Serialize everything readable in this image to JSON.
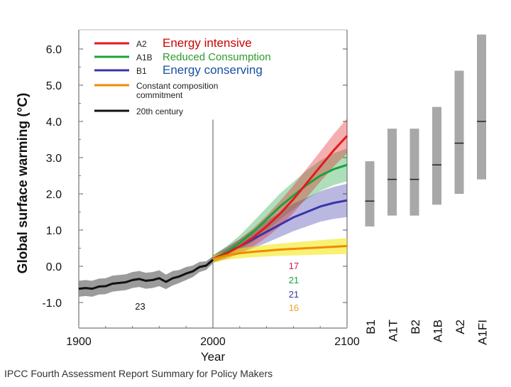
{
  "footer_text": "IPCC Fourth Assessment Report Summary for Policy Makers",
  "colors": {
    "A2": "#e31a1c",
    "A1B": "#1aa33a",
    "B1": "#3a34a8",
    "commit": "#f08a00",
    "history": "#111111",
    "history_band": "#8a8a8a",
    "bar": "#a8a8a8"
  },
  "chart_data": {
    "type": "line",
    "xlabel": "Year",
    "ylabel": "Global surface warming (°C)",
    "xlim": [
      1900,
      2100
    ],
    "ylim": [
      -1.0,
      6.0
    ],
    "x_ticks": [
      "1900",
      "2000",
      "2100"
    ],
    "y_ticks": [
      "-1.0",
      "0.0",
      "1.0",
      "2.0",
      "3.0",
      "4.0",
      "5.0",
      "6.0"
    ],
    "divider_year": 2000,
    "series": [
      {
        "key": "history",
        "name": "20th century",
        "x": [
          1900,
          1905,
          1910,
          1915,
          1920,
          1925,
          1930,
          1935,
          1940,
          1945,
          1950,
          1955,
          1960,
          1965,
          1970,
          1975,
          1980,
          1985,
          1990,
          1995,
          2000
        ],
        "y": [
          -0.62,
          -0.6,
          -0.62,
          -0.56,
          -0.55,
          -0.48,
          -0.46,
          -0.44,
          -0.38,
          -0.35,
          -0.4,
          -0.38,
          -0.33,
          -0.43,
          -0.33,
          -0.28,
          -0.2,
          -0.14,
          -0.02,
          0.02,
          0.18
        ],
        "band": [
          0.22,
          0.22,
          0.22,
          0.22,
          0.22,
          0.22,
          0.22,
          0.22,
          0.22,
          0.22,
          0.22,
          0.22,
          0.22,
          0.2,
          0.2,
          0.18,
          0.18,
          0.16,
          0.14,
          0.12,
          0.1
        ]
      },
      {
        "key": "A2",
        "name": "A2",
        "x": [
          2000,
          2010,
          2020,
          2030,
          2040,
          2050,
          2060,
          2070,
          2080,
          2090,
          2100
        ],
        "y": [
          0.2,
          0.35,
          0.55,
          0.8,
          1.1,
          1.45,
          1.85,
          2.3,
          2.75,
          3.2,
          3.6
        ],
        "band": [
          0.1,
          0.15,
          0.2,
          0.25,
          0.3,
          0.35,
          0.38,
          0.4,
          0.42,
          0.45,
          0.48
        ]
      },
      {
        "key": "A1B",
        "name": "A1B",
        "x": [
          2000,
          2010,
          2020,
          2030,
          2040,
          2050,
          2060,
          2070,
          2080,
          2090,
          2100
        ],
        "y": [
          0.2,
          0.4,
          0.65,
          0.95,
          1.3,
          1.65,
          1.95,
          2.25,
          2.5,
          2.68,
          2.8
        ],
        "band": [
          0.1,
          0.15,
          0.2,
          0.28,
          0.32,
          0.36,
          0.38,
          0.4,
          0.42,
          0.44,
          0.45
        ]
      },
      {
        "key": "B1",
        "name": "B1",
        "x": [
          2000,
          2010,
          2020,
          2030,
          2040,
          2050,
          2060,
          2070,
          2080,
          2090,
          2100
        ],
        "y": [
          0.2,
          0.38,
          0.55,
          0.75,
          0.95,
          1.15,
          1.35,
          1.5,
          1.65,
          1.75,
          1.82
        ],
        "band": [
          0.1,
          0.15,
          0.2,
          0.25,
          0.3,
          0.34,
          0.38,
          0.4,
          0.42,
          0.44,
          0.46
        ]
      },
      {
        "key": "commit",
        "name": "Constant composition commitment",
        "x": [
          2000,
          2010,
          2020,
          2030,
          2040,
          2050,
          2060,
          2070,
          2080,
          2090,
          2100
        ],
        "y": [
          0.2,
          0.3,
          0.36,
          0.4,
          0.43,
          0.46,
          0.48,
          0.5,
          0.52,
          0.54,
          0.56
        ],
        "band": [
          0.1,
          0.12,
          0.14,
          0.15,
          0.16,
          0.17,
          0.18,
          0.19,
          0.2,
          0.21,
          0.22
        ]
      }
    ],
    "legend": [
      {
        "key": "A2",
        "label": "A2",
        "annotation": "Energy intensive"
      },
      {
        "key": "A1B",
        "label": "A1B",
        "annotation": "Reduced Consumption"
      },
      {
        "key": "B1",
        "label": "B1",
        "annotation": "Energy conserving"
      },
      {
        "key": "commit",
        "label": "Constant composition\ncommitment",
        "annotation": ""
      },
      {
        "key": "history",
        "label": "20th century",
        "annotation": ""
      }
    ],
    "annotation_colors": {
      "A2": "#cc0000",
      "A1B": "#2e9a2e",
      "B1": "#1a4fa0"
    },
    "model_counts": [
      {
        "key": "history",
        "value": "23",
        "x": 1950
      },
      {
        "key": "A2",
        "value": "17",
        "x": 2055
      },
      {
        "key": "A1B",
        "value": "21",
        "x": 2055
      },
      {
        "key": "B1",
        "value": "21",
        "x": 2055
      },
      {
        "key": "commit",
        "value": "16",
        "x": 2055
      }
    ],
    "range_bars": [
      {
        "label": "B1",
        "low": 1.1,
        "best": 1.8,
        "high": 2.9
      },
      {
        "label": "A1T",
        "low": 1.4,
        "best": 2.4,
        "high": 3.8
      },
      {
        "label": "B2",
        "low": 1.4,
        "best": 2.4,
        "high": 3.8
      },
      {
        "label": "A1B",
        "low": 1.7,
        "best": 2.8,
        "high": 4.4
      },
      {
        "label": "A2",
        "low": 2.0,
        "best": 3.4,
        "high": 5.4
      },
      {
        "label": "A1FI",
        "low": 2.4,
        "best": 4.0,
        "high": 6.4
      }
    ]
  }
}
